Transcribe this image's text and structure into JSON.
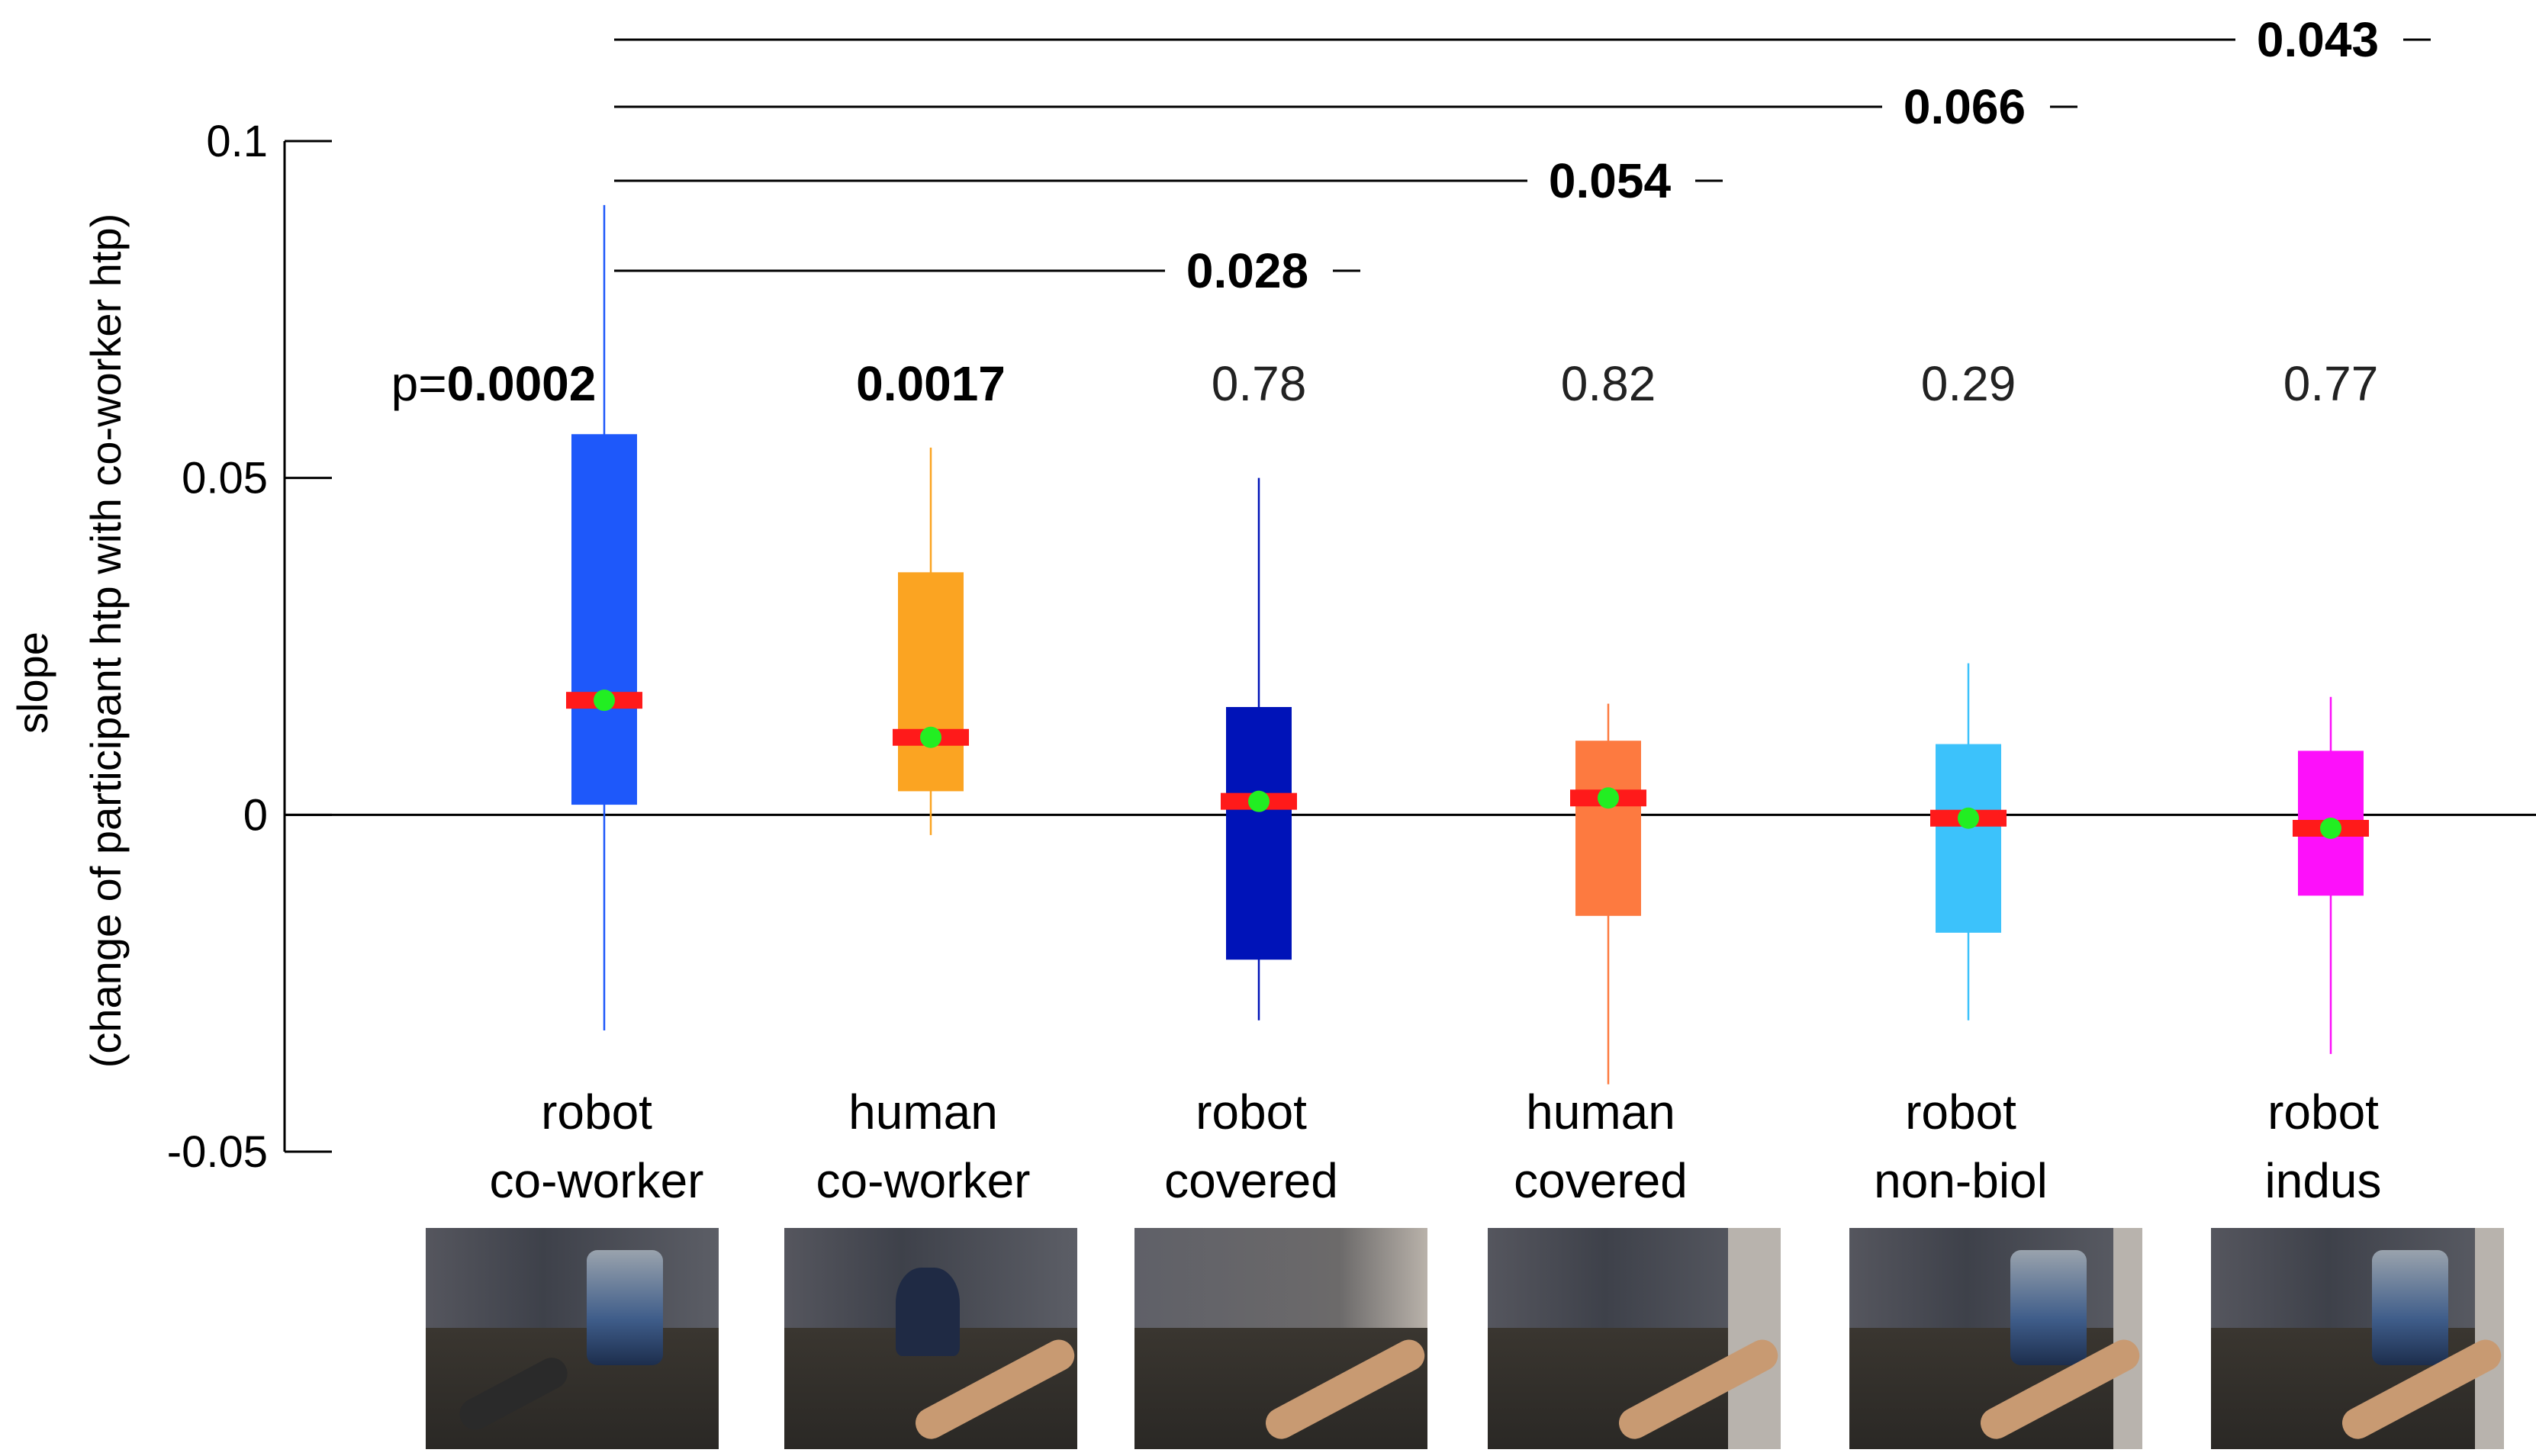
{
  "chart_data": {
    "type": "box",
    "ylabel_line1": "slope",
    "ylabel_line2": "(change of participant htp with co-worker htp)",
    "ylim": [
      -0.05,
      0.1
    ],
    "yticks": [
      {
        "value": 0.1,
        "label": "0.1"
      },
      {
        "value": 0.05,
        "label": "0.05"
      },
      {
        "value": 0,
        "label": "0"
      },
      {
        "value": -0.05,
        "label": "-0.05"
      }
    ],
    "reference_line": 0,
    "series": [
      {
        "label1": "robot",
        "label2": "co-worker",
        "color": "#1e58fa",
        "whisker_low": -0.032,
        "q1": 0.0015,
        "median": 0.017,
        "mean": 0.017,
        "q3": 0.0565,
        "whisker_high": 0.0905,
        "p_prefix": "p=",
        "p_value": "0.0002",
        "p_bold": true
      },
      {
        "label1": "human",
        "label2": "co-worker",
        "color": "#fba422",
        "whisker_low": -0.003,
        "q1": 0.0035,
        "median": 0.0115,
        "mean": 0.0115,
        "q3": 0.036,
        "whisker_high": 0.0545,
        "p_prefix": "",
        "p_value": "0.0017",
        "p_bold": true
      },
      {
        "label1": "robot",
        "label2": "covered",
        "color": "#0013b8",
        "whisker_low": -0.0305,
        "q1": -0.0215,
        "median": 0.002,
        "mean": 0.002,
        "q3": 0.016,
        "whisker_high": 0.05,
        "p_prefix": "",
        "p_value": "0.78",
        "p_bold": false
      },
      {
        "label1": "human",
        "label2": "covered",
        "color": "#fd7a40",
        "whisker_low": -0.04,
        "q1": -0.015,
        "median": 0.0025,
        "mean": 0.0025,
        "q3": 0.011,
        "whisker_high": 0.0165,
        "p_prefix": "",
        "p_value": "0.82",
        "p_bold": false
      },
      {
        "label1": "robot",
        "label2": "non-biol",
        "color": "#3cc2fb",
        "whisker_low": -0.0305,
        "q1": -0.0175,
        "median": -0.0005,
        "mean": -0.0005,
        "q3": 0.0105,
        "whisker_high": 0.0225,
        "p_prefix": "",
        "p_value": "0.29",
        "p_bold": false
      },
      {
        "label1": "robot",
        "label2": "indus",
        "color": "#fd10fa",
        "whisker_low": -0.0355,
        "q1": -0.012,
        "median": -0.002,
        "mean": -0.002,
        "q3": 0.0095,
        "whisker_high": 0.0175,
        "p_prefix": "",
        "p_value": "0.77",
        "p_bold": false
      }
    ],
    "median_color": "#ff1a1a",
    "mean_color": "#22ee22",
    "comparisons": [
      {
        "from": 0,
        "to": 2,
        "p": "0.028"
      },
      {
        "from": 0,
        "to": 3,
        "p": "0.054"
      },
      {
        "from": 0,
        "to": 4,
        "p": "0.066"
      },
      {
        "from": 0,
        "to": 5,
        "p": "0.043"
      }
    ],
    "grid": false,
    "legend": "none"
  }
}
